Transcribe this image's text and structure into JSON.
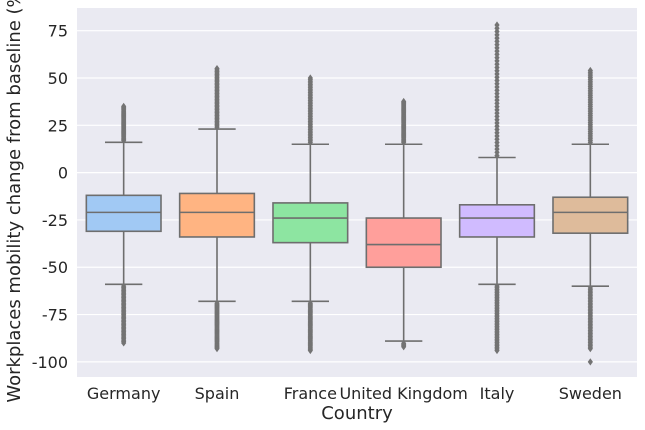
{
  "chart_data": {
    "type": "box",
    "xlabel": "Country",
    "ylabel": "Workplaces mobility change from baseline (%)",
    "ylim": [
      -108,
      87
    ],
    "yticks": [
      75,
      50,
      25,
      0,
      -25,
      -50,
      -75,
      -100
    ],
    "grid": true,
    "background_color": "#eaeaf2",
    "box_edge_color": "#6e6e6e",
    "categories": [
      "Germany",
      "Spain",
      "France",
      "United Kingdom",
      "Italy",
      "Sweden"
    ],
    "boxes": [
      {
        "category": "Germany",
        "color": "#a1c9f4",
        "whisker_low": -59,
        "q1": -31,
        "median": -21,
        "q3": -12,
        "whisker_high": 16,
        "outlier_low_range": [
          -90,
          -60
        ],
        "outlier_high_range": [
          17,
          35
        ]
      },
      {
        "category": "Spain",
        "color": "#ffb482",
        "whisker_low": -68,
        "q1": -34,
        "median": -21,
        "q3": -11,
        "whisker_high": 23,
        "outlier_low_range": [
          -93,
          -69
        ],
        "outlier_high_range": [
          24,
          55
        ]
      },
      {
        "category": "France",
        "color": "#8de5a1",
        "whisker_low": -68,
        "q1": -37,
        "median": -24,
        "q3": -16,
        "whisker_high": 15,
        "outlier_low_range": [
          -94,
          -69
        ],
        "outlier_high_range": [
          16,
          50
        ]
      },
      {
        "category": "United Kingdom",
        "color": "#ff9f9b",
        "whisker_low": -89,
        "q1": -50,
        "median": -38,
        "q3": -24,
        "whisker_high": 15,
        "outlier_low_range": [
          -92,
          -90
        ],
        "outlier_high_range": [
          16,
          38
        ]
      },
      {
        "category": "Italy",
        "color": "#d0bbff",
        "whisker_low": -59,
        "q1": -34,
        "median": -24,
        "q3": -17,
        "whisker_high": 8,
        "outlier_low_range": [
          -94,
          -60
        ],
        "outlier_high_range": [
          9,
          78
        ]
      },
      {
        "category": "Sweden",
        "color": "#debb9b",
        "whisker_low": -60,
        "q1": -32,
        "median": -21,
        "q3": -13,
        "whisker_high": 15,
        "outlier_low_range": [
          -93,
          -61
        ],
        "outlier_high_range": [
          16,
          54
        ],
        "extreme_outliers": [
          -100
        ]
      }
    ]
  }
}
